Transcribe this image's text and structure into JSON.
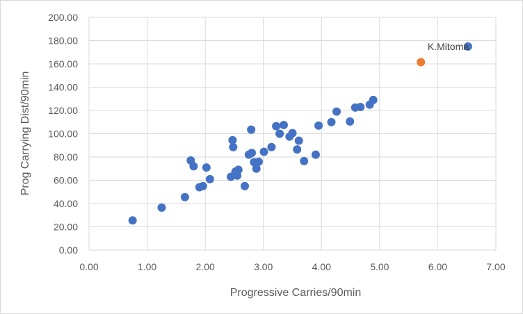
{
  "chart_data": {
    "type": "scatter",
    "xlabel": "Progressive Carries/90min",
    "ylabel": "Prog Carrying Dist/90min",
    "xlim": [
      0,
      7
    ],
    "ylim": [
      0,
      200
    ],
    "x_ticks": [
      "0.00",
      "1.00",
      "2.00",
      "3.00",
      "4.00",
      "5.00",
      "6.00",
      "7.00"
    ],
    "y_ticks": [
      "0.00",
      "20.00",
      "40.00",
      "60.00",
      "80.00",
      "100.00",
      "120.00",
      "140.00",
      "160.00",
      "180.00",
      "200.00"
    ],
    "grid": true,
    "colors": {
      "points": "#4472C4",
      "highlight": "#ED7D31",
      "grid": "#d9d9d9"
    },
    "series": [
      {
        "points": [
          [
            0.75,
            25.5
          ],
          [
            1.25,
            36.5
          ],
          [
            1.65,
            45.5
          ],
          [
            1.75,
            77
          ],
          [
            1.8,
            72
          ],
          [
            1.9,
            54
          ],
          [
            1.96,
            55
          ],
          [
            2.02,
            71
          ],
          [
            2.08,
            61
          ],
          [
            2.44,
            63
          ],
          [
            2.47,
            94.5
          ],
          [
            2.48,
            88.5
          ],
          [
            2.52,
            67.5
          ],
          [
            2.55,
            64
          ],
          [
            2.57,
            69
          ],
          [
            2.68,
            55
          ],
          [
            2.75,
            82
          ],
          [
            2.79,
            103.5
          ],
          [
            2.8,
            83.5
          ],
          [
            2.84,
            75.5
          ],
          [
            2.88,
            70
          ],
          [
            2.92,
            76
          ],
          [
            3.01,
            84.5
          ],
          [
            3.14,
            88.5
          ],
          [
            3.22,
            106.5
          ],
          [
            3.28,
            100
          ],
          [
            3.35,
            107.5
          ],
          [
            3.45,
            97.5
          ],
          [
            3.5,
            100.5
          ],
          [
            3.58,
            86.5
          ],
          [
            3.61,
            94
          ],
          [
            3.7,
            76.5
          ],
          [
            3.9,
            82
          ],
          [
            3.95,
            107
          ],
          [
            4.17,
            110
          ],
          [
            4.26,
            119
          ],
          [
            4.49,
            110.5
          ],
          [
            4.58,
            122.5
          ],
          [
            4.67,
            123
          ],
          [
            4.83,
            125
          ],
          [
            4.89,
            129
          ],
          [
            6.52,
            175
          ]
        ]
      },
      {
        "points": [
          [
            5.71,
            161.5
          ]
        ]
      }
    ],
    "annotations": [
      {
        "text": "K.Mitoma",
        "x": 6.18,
        "y": 175
      }
    ]
  }
}
